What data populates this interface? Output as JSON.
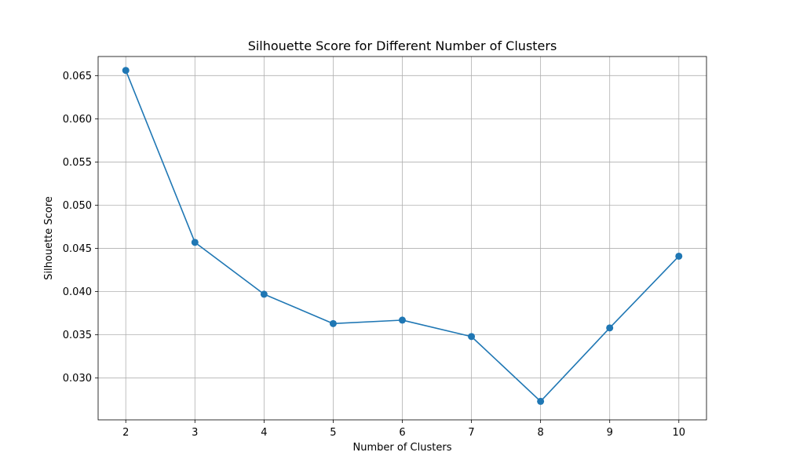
{
  "chart_data": {
    "type": "line",
    "title": "Silhouette Score for Different Number of Clusters",
    "xlabel": "Number of Clusters",
    "ylabel": "Silhouette Score",
    "x": [
      2,
      3,
      4,
      5,
      6,
      7,
      8,
      9,
      10
    ],
    "series": [
      {
        "values": [
          0.0656,
          0.0457,
          0.0397,
          0.0363,
          0.0367,
          0.0348,
          0.0273,
          0.0358,
          0.0441
        ],
        "color": "#1f77b4",
        "marker": "circle"
      }
    ],
    "xticks": [
      2,
      3,
      4,
      5,
      6,
      7,
      8,
      9,
      10
    ],
    "xtick_labels": [
      "2",
      "3",
      "4",
      "5",
      "6",
      "7",
      "8",
      "9",
      "10"
    ],
    "yticks": [
      0.03,
      0.035,
      0.04,
      0.045,
      0.05,
      0.055,
      0.06,
      0.065
    ],
    "ytick_labels": [
      "0.030",
      "0.035",
      "0.040",
      "0.045",
      "0.050",
      "0.055",
      "0.060",
      "0.065"
    ],
    "xlim": [
      1.6,
      10.4
    ],
    "ylim": [
      0.02516,
      0.06721
    ],
    "grid": true,
    "legend": "none"
  }
}
